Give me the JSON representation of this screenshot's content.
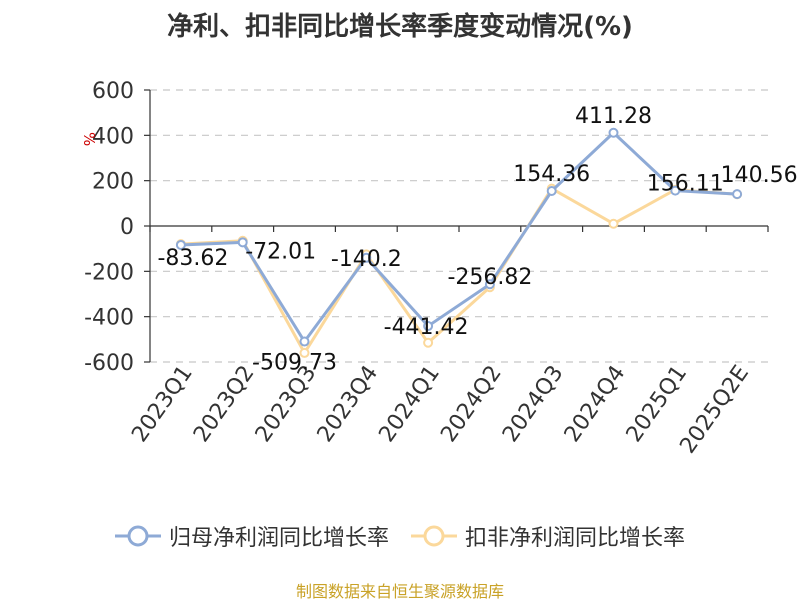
{
  "chart_data": {
    "type": "line",
    "title": "净利、扣非同比增长率季度变动情况(%)",
    "ylabel": "%",
    "categories": [
      "2023Q1",
      "2023Q2",
      "2023Q3",
      "2023Q4",
      "2024Q1",
      "2024Q2",
      "2024Q3",
      "2024Q4",
      "2025Q1",
      "2025Q2E"
    ],
    "ylim": [
      -600,
      600
    ],
    "yticks": [
      600,
      400,
      200,
      0,
      -200,
      -400,
      -600
    ],
    "grid": true,
    "legend_position": "bottom",
    "series": [
      {
        "name": "归母净利润同比增长率",
        "color": "#8eaad6",
        "values": [
          -83.62,
          -72.01,
          -509.73,
          -140.2,
          -441.42,
          -256.82,
          154.36,
          411.28,
          156.11,
          140.56
        ]
      },
      {
        "name": "扣非净利润同比增长率",
        "color": "#fbd89b",
        "values": [
          -80,
          -65,
          -560,
          -125,
          -515,
          -270,
          165,
          10,
          160,
          140
        ]
      }
    ],
    "data_labels": [
      "-83.62",
      "-72.01",
      "-509.73",
      "-140.2",
      "-441.42",
      "-256.82",
      "154.36",
      "411.28",
      "156.11",
      "140.56"
    ],
    "source": "制图数据来自恒生聚源数据库"
  }
}
